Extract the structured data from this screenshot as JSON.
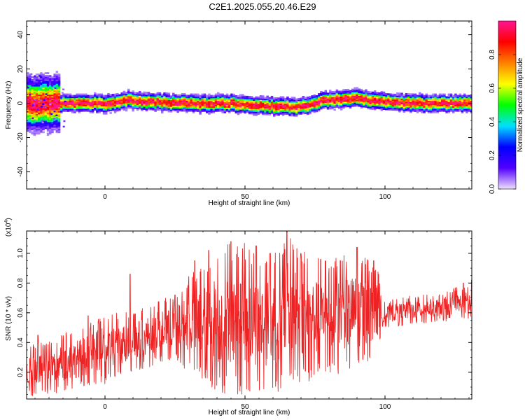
{
  "title": "C2E1.2025.055.20.46.E29",
  "chart_data": [
    {
      "type": "heatmap",
      "xlabel": "Height of straight line (km)",
      "ylabel": "Frequency (Hz)",
      "xlim": [
        -28,
        131
      ],
      "ylim": [
        -50,
        48
      ],
      "xticks": [
        0,
        50,
        100
      ],
      "xtick_labels": [
        "0",
        "50",
        "100"
      ],
      "yticks": [
        -40,
        -20,
        0,
        20,
        40
      ],
      "ytick_labels": [
        "-40",
        "-20",
        "0",
        "20",
        "40"
      ],
      "band_center_hz": [
        [
          -28,
          0
        ],
        [
          -20,
          0
        ],
        [
          -10,
          0
        ],
        [
          0,
          0
        ],
        [
          8,
          2
        ],
        [
          15,
          1
        ],
        [
          30,
          0
        ],
        [
          45,
          0
        ],
        [
          55,
          -1
        ],
        [
          68,
          -2
        ],
        [
          72,
          -1
        ],
        [
          78,
          2
        ],
        [
          90,
          3
        ],
        [
          100,
          1
        ],
        [
          110,
          0
        ],
        [
          120,
          0
        ],
        [
          131,
          0
        ]
      ],
      "colorbar": {
        "label": "Normalized spectral amplitude",
        "range": [
          0,
          1
        ],
        "ticks": [
          0.0,
          0.2,
          0.4,
          0.6,
          0.8
        ],
        "tick_labels": [
          "0.0",
          "0.2",
          "0.4",
          "0.6",
          "0.8"
        ],
        "colors": [
          "#f0e0ff",
          "#5000ff",
          "#0000ff",
          "#00e0ff",
          "#00ff00",
          "#ffff00",
          "#ff8000",
          "#ff0000",
          "#ff1493"
        ]
      }
    },
    {
      "type": "line",
      "xlabel": "Height of straight line (km)",
      "ylabel": "SNR (10 * v/v)",
      "y_multiplier_label": "(x10",
      "y_multiplier_exp": "4",
      "xlim": [
        -28,
        131
      ],
      "ylim": [
        0.02,
        1.15
      ],
      "xticks": [
        0,
        50,
        100
      ],
      "xtick_labels": [
        "0",
        "50",
        "100"
      ],
      "yticks": [
        0.2,
        0.4,
        0.6,
        0.8,
        1.0
      ],
      "ytick_labels": [
        "0.2",
        "0.4",
        "0.6",
        "0.8",
        "1.0"
      ],
      "line_color": "#ee2222",
      "envelope_low": [
        [
          -28,
          0.03
        ],
        [
          -20,
          0.05
        ],
        [
          -10,
          0.08
        ],
        [
          0,
          0.12
        ],
        [
          10,
          0.2
        ],
        [
          20,
          0.26
        ],
        [
          25,
          0.28
        ],
        [
          30,
          0.2
        ],
        [
          40,
          0.06
        ],
        [
          50,
          0.05
        ],
        [
          60,
          0.06
        ],
        [
          70,
          0.12
        ],
        [
          80,
          0.18
        ],
        [
          90,
          0.2
        ],
        [
          97,
          0.3
        ],
        [
          100,
          0.5
        ],
        [
          110,
          0.52
        ],
        [
          120,
          0.54
        ],
        [
          131,
          0.55
        ]
      ],
      "envelope_high": [
        [
          -28,
          0.38
        ],
        [
          -20,
          0.42
        ],
        [
          -10,
          0.5
        ],
        [
          0,
          0.6
        ],
        [
          10,
          0.62
        ],
        [
          20,
          0.7
        ],
        [
          25,
          0.72
        ],
        [
          30,
          0.85
        ],
        [
          40,
          1.05
        ],
        [
          50,
          1.08
        ],
        [
          55,
          1.0
        ],
        [
          60,
          1.0
        ],
        [
          65,
          1.15
        ],
        [
          70,
          1.02
        ],
        [
          80,
          0.95
        ],
        [
          90,
          1.02
        ],
        [
          97,
          0.92
        ],
        [
          100,
          0.68
        ],
        [
          110,
          0.72
        ],
        [
          120,
          0.74
        ],
        [
          131,
          0.8
        ]
      ],
      "spike_peaks": [
        [
          -24,
          0.45
        ],
        [
          -6,
          0.58
        ],
        [
          9,
          0.86
        ],
        [
          25,
          0.72
        ],
        [
          32,
          0.95
        ],
        [
          37,
          1.02
        ],
        [
          45,
          1.08
        ],
        [
          54,
          1.05
        ],
        [
          59,
          1.0
        ],
        [
          65,
          1.15
        ],
        [
          70,
          1.0
        ],
        [
          77,
          0.96
        ],
        [
          84,
          0.95
        ],
        [
          90,
          1.04
        ],
        [
          96,
          0.95
        ],
        [
          128,
          0.8
        ],
        [
          131,
          0.82
        ]
      ]
    }
  ]
}
